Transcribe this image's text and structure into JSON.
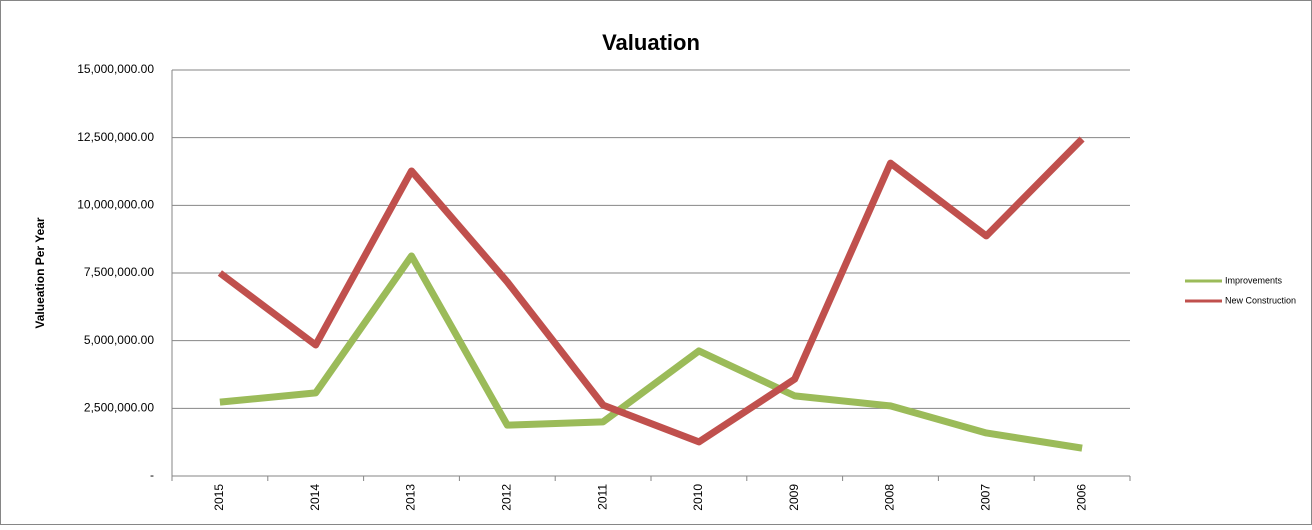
{
  "chart_data": {
    "type": "line",
    "title": "Valuation",
    "y_label": "Valueation Per Year",
    "categories": [
      "2015",
      "2014",
      "2013",
      "2012",
      "2011",
      "2010",
      "2009",
      "2008",
      "2007",
      "2006"
    ],
    "series": [
      {
        "name": "Improvements",
        "color": "#9bbb59",
        "values": [
          2730000,
          3070000,
          8130000,
          1880000,
          2000000,
          4620000,
          2960000,
          2590000,
          1590000,
          1030000
        ]
      },
      {
        "name": "New Construction",
        "color": "#c0504d",
        "values": [
          7500000,
          4840000,
          11270000,
          7170000,
          2620000,
          1260000,
          3580000,
          11560000,
          8870000,
          12450000
        ]
      }
    ],
    "ylim": [
      0,
      15000000
    ],
    "yticks": [
      {
        "value": 0,
        "label": "-"
      },
      {
        "value": 2500000,
        "label": "2,500,000.00"
      },
      {
        "value": 5000000,
        "label": "5,000,000.00"
      },
      {
        "value": 7500000,
        "label": "7,500,000.00"
      },
      {
        "value": 10000000,
        "label": "10,000,000.00"
      },
      {
        "value": 12500000,
        "label": "12,500,000.00"
      },
      {
        "value": 15000000,
        "label": "15,000,000.00"
      }
    ],
    "grid": true,
    "legend": "right"
  }
}
